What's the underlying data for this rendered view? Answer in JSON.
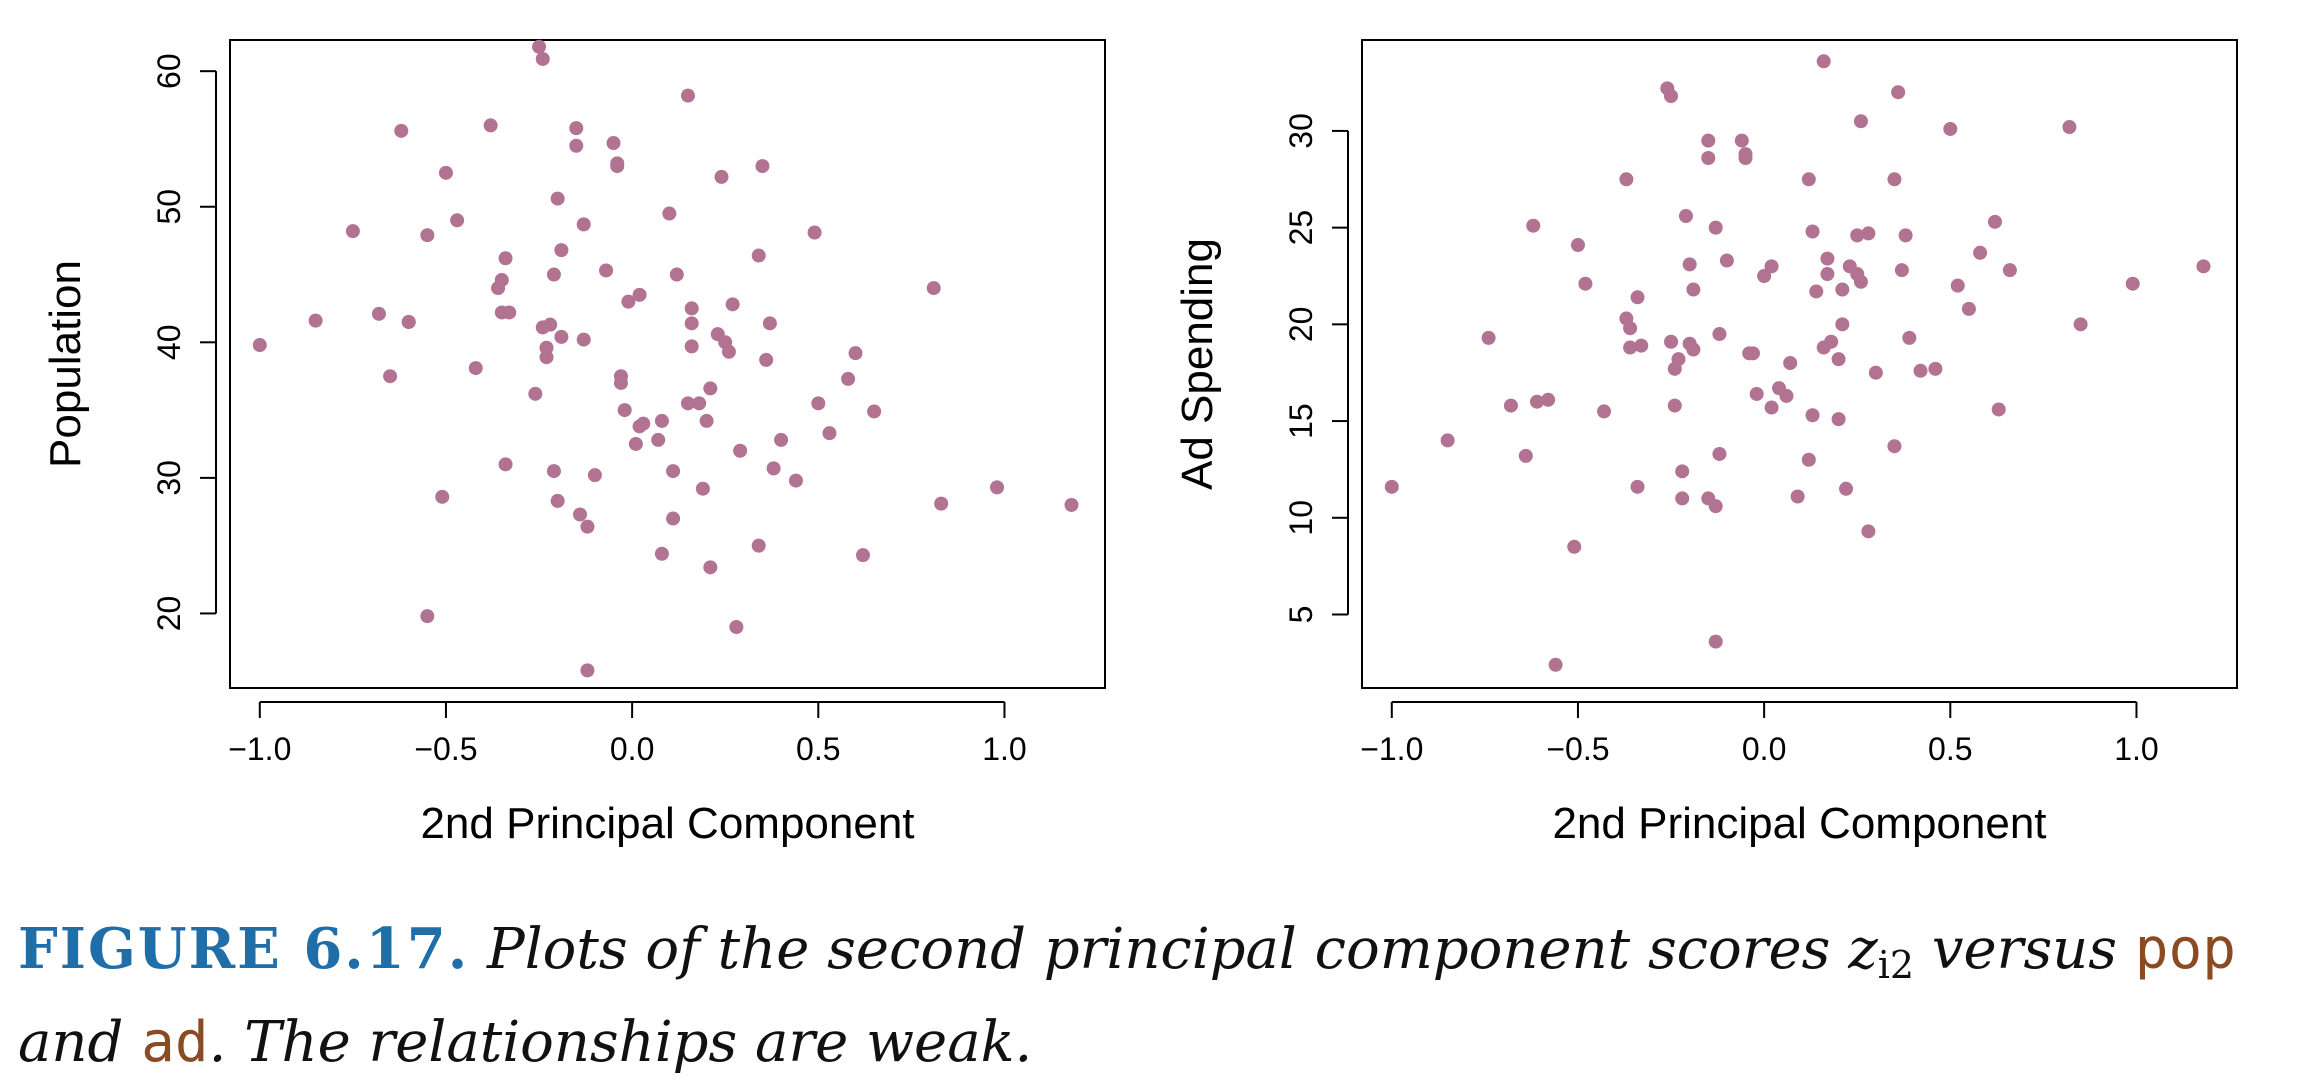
{
  "colors": {
    "point": "#b27292",
    "axis": "#000000"
  },
  "caption": {
    "label": "FIGURE 6.17.",
    "text1": "Plots of the second principal component scores",
    "math_var": "z",
    "math_sub": "i2",
    "text2": "versus",
    "code1": "pop",
    "text3": "and",
    "code2": "ad",
    "text4": ". The relationships are weak."
  },
  "chart_data": [
    {
      "type": "scatter",
      "xlabel": "2nd Principal Component",
      "ylabel": "Population",
      "xlim": [
        -1.08,
        1.27
      ],
      "ylim": [
        14.5,
        62.3
      ],
      "xticks": [
        -1.0,
        -0.5,
        0.0,
        0.5,
        1.0
      ],
      "xtick_labels": [
        "−1.0",
        "−0.5",
        "0.0",
        "0.5",
        "1.0"
      ],
      "yticks": [
        20,
        30,
        40,
        50,
        60
      ],
      "ytick_labels": [
        "20",
        "30",
        "40",
        "50",
        "60"
      ],
      "x": [
        -1.0,
        -0.85,
        -0.75,
        -0.68,
        -0.65,
        -0.62,
        -0.6,
        -0.6,
        -0.55,
        -0.55,
        -0.51,
        -0.5,
        -0.47,
        -0.42,
        -0.38,
        -0.36,
        -0.35,
        -0.35,
        -0.34,
        -0.34,
        -0.33,
        -0.26,
        -0.25,
        -0.24,
        -0.24,
        -0.23,
        -0.23,
        -0.22,
        -0.21,
        -0.21,
        -0.2,
        -0.2,
        -0.19,
        -0.19,
        -0.15,
        -0.15,
        -0.14,
        -0.13,
        -0.13,
        -0.12,
        -0.12,
        -0.1,
        -0.07,
        -0.05,
        -0.04,
        -0.04,
        -0.03,
        -0.03,
        -0.02,
        -0.01,
        0.01,
        0.02,
        0.02,
        0.03,
        0.07,
        0.08,
        0.08,
        0.1,
        0.11,
        0.11,
        0.12,
        0.15,
        0.15,
        0.16,
        0.16,
        0.16,
        0.18,
        0.19,
        0.2,
        0.21,
        0.21,
        0.23,
        0.24,
        0.25,
        0.26,
        0.27,
        0.28,
        0.29,
        0.34,
        0.34,
        0.35,
        0.36,
        0.37,
        0.38,
        0.4,
        0.44,
        0.49,
        0.5,
        0.53,
        0.58,
        0.6,
        0.62,
        0.65,
        0.81,
        0.83,
        0.98,
        1.18
      ],
      "y": [
        39.8,
        41.6,
        48.2,
        42.1,
        37.5,
        55.6,
        41.5,
        41.5,
        19.8,
        47.9,
        28.6,
        52.5,
        49.0,
        38.1,
        56.0,
        44.0,
        44.6,
        42.2,
        31.0,
        46.2,
        42.2,
        36.2,
        61.8,
        60.9,
        41.1,
        38.9,
        39.6,
        41.3,
        45.0,
        30.5,
        50.6,
        28.3,
        46.8,
        40.4,
        55.8,
        54.5,
        27.3,
        40.2,
        48.7,
        26.4,
        15.8,
        30.2,
        45.3,
        54.7,
        53.2,
        53.0,
        37.5,
        37.0,
        35.0,
        43.0,
        32.5,
        43.5,
        33.8,
        34.0,
        32.8,
        24.4,
        34.2,
        49.5,
        30.5,
        27.0,
        45.0,
        58.2,
        35.5,
        39.7,
        42.5,
        41.4,
        35.5,
        29.2,
        34.2,
        23.4,
        36.6,
        40.6,
        52.2,
        40.0,
        39.3,
        42.8,
        19.0,
        32.0,
        46.4,
        25.0,
        53.0,
        38.7,
        41.4,
        30.7,
        32.8,
        29.8,
        48.1,
        35.5,
        33.3,
        37.3,
        39.2,
        24.3,
        34.9,
        44.0,
        28.1,
        29.3,
        28.0
      ]
    },
    {
      "type": "scatter",
      "xlabel": "2nd Principal Component",
      "ylabel": "Ad Spending",
      "xlim": [
        -1.08,
        1.27
      ],
      "ylim": [
        1.2,
        34.7
      ],
      "xticks": [
        -1.0,
        -0.5,
        0.0,
        0.5,
        1.0
      ],
      "xtick_labels": [
        "−1.0",
        "−0.5",
        "0.0",
        "0.5",
        "1.0"
      ],
      "yticks": [
        5,
        10,
        15,
        20,
        25,
        30
      ],
      "ytick_labels": [
        "5",
        "10",
        "15",
        "20",
        "25",
        "30"
      ],
      "x": [
        -1.0,
        -0.85,
        -0.74,
        -0.68,
        -0.64,
        -0.62,
        -0.61,
        -0.58,
        -0.56,
        -0.51,
        -0.5,
        -0.48,
        -0.43,
        -0.37,
        -0.37,
        -0.36,
        -0.36,
        -0.34,
        -0.34,
        -0.33,
        -0.26,
        -0.25,
        -0.25,
        -0.24,
        -0.24,
        -0.23,
        -0.22,
        -0.22,
        -0.21,
        -0.2,
        -0.2,
        -0.19,
        -0.19,
        -0.15,
        -0.15,
        -0.15,
        -0.13,
        -0.13,
        -0.13,
        -0.12,
        -0.12,
        -0.1,
        -0.06,
        -0.05,
        -0.05,
        -0.04,
        -0.03,
        -0.02,
        0.0,
        0.02,
        0.02,
        0.04,
        0.06,
        0.07,
        0.09,
        0.12,
        0.12,
        0.13,
        0.13,
        0.14,
        0.16,
        0.16,
        0.17,
        0.17,
        0.18,
        0.2,
        0.2,
        0.21,
        0.21,
        0.22,
        0.23,
        0.25,
        0.25,
        0.26,
        0.26,
        0.28,
        0.28,
        0.3,
        0.35,
        0.35,
        0.36,
        0.37,
        0.38,
        0.39,
        0.42,
        0.46,
        0.5,
        0.52,
        0.55,
        0.58,
        0.62,
        0.63,
        0.66,
        0.82,
        0.85,
        0.99,
        1.18
      ],
      "y": [
        11.6,
        14.0,
        19.3,
        15.8,
        13.2,
        25.1,
        16.0,
        16.1,
        2.4,
        8.5,
        24.1,
        22.1,
        15.5,
        27.5,
        20.3,
        19.8,
        18.8,
        11.6,
        21.4,
        18.9,
        32.2,
        31.8,
        19.1,
        17.7,
        15.8,
        18.2,
        11.0,
        12.4,
        25.6,
        19.0,
        23.1,
        21.8,
        18.7,
        29.5,
        28.6,
        11.0,
        25.0,
        10.6,
        3.6,
        19.5,
        13.3,
        23.3,
        29.5,
        28.6,
        28.8,
        18.5,
        18.5,
        16.4,
        22.5,
        15.7,
        23.0,
        16.7,
        16.3,
        18.0,
        11.1,
        27.5,
        13.0,
        24.8,
        15.3,
        21.7,
        18.8,
        33.6,
        23.4,
        22.6,
        19.1,
        18.2,
        15.1,
        21.8,
        20.0,
        11.5,
        23.0,
        22.6,
        24.6,
        30.5,
        22.2,
        24.7,
        9.3,
        17.5,
        27.5,
        13.7,
        32.0,
        22.8,
        24.6,
        19.3,
        17.6,
        17.7,
        30.1,
        22.0,
        20.8,
        23.7,
        25.3,
        15.6,
        22.8,
        30.2,
        20.0,
        22.1,
        23.0
      ]
    }
  ]
}
